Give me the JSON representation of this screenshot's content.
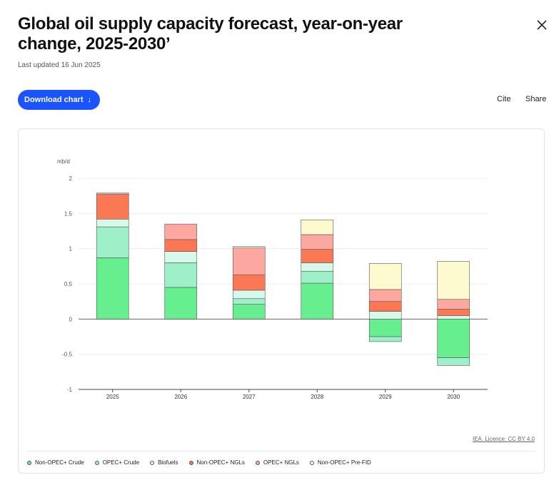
{
  "header": {
    "title": "Global oil supply capacity forecast, year-on-year change, 2025-2030’",
    "updated": "Last updated 16 Jun 2025"
  },
  "toolbar": {
    "download_label": "Download chart",
    "download_arrow": "↓",
    "cite_label": "Cite",
    "share_label": "Share"
  },
  "colors": {
    "accent": "#1a53ff",
    "non_opec_crude": "#66ee8f",
    "opec_crude": "#9ef0c8",
    "biofuels": "#d8f8ea",
    "non_opec_ngls": "#fb7854",
    "opec_ngls": "#fca79f",
    "non_opec_prefid": "#fdfad0"
  },
  "chart_data": {
    "type": "bar",
    "stacked": true,
    "categories": [
      "2025",
      "2026",
      "2027",
      "2028",
      "2029",
      "2030"
    ],
    "ylabel": "mb/d",
    "ylim": [
      -1,
      2
    ],
    "yticks": [
      2,
      1.5,
      1,
      0.5,
      0,
      -0.5,
      -1
    ],
    "ytick_labels": [
      "2",
      "1.5",
      "1",
      "0.5",
      "0",
      "-0.5",
      "-1"
    ],
    "grid": true,
    "legend_position": "bottom",
    "source": "IEA. Licence: CC BY 4.0",
    "series": [
      {
        "name": "Non-OPEC+ Crude",
        "values": [
          0.87,
          0.45,
          0.21,
          0.51,
          -0.25,
          -0.55
        ]
      },
      {
        "name": "OPEC+ Crude",
        "values": [
          0.44,
          0.35,
          0.08,
          0.17,
          -0.07,
          -0.11
        ]
      },
      {
        "name": "Biofuels",
        "values": [
          0.11,
          0.16,
          0.12,
          0.12,
          0.11,
          0.05
        ]
      },
      {
        "name": "Non-OPEC+ NGLs",
        "values": [
          0.35,
          0.17,
          0.22,
          0.19,
          0.14,
          0.09
        ]
      },
      {
        "name": "OPEC+ NGLs",
        "values": [
          0.02,
          0.22,
          0.38,
          0.21,
          0.17,
          0.14
        ]
      },
      {
        "name": "Non-OPEC+ Pre-FID",
        "values": [
          0.0,
          0.0,
          0.02,
          0.21,
          0.37,
          0.54
        ]
      }
    ]
  }
}
